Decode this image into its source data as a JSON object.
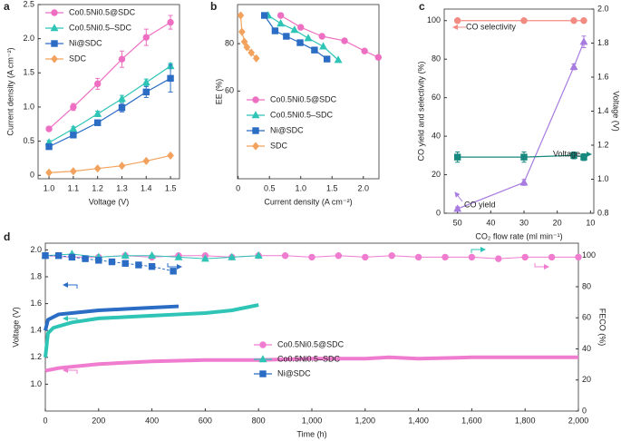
{
  "chart_data": [
    {
      "type": "line",
      "label": "a",
      "xlabel": "Voltage (V)",
      "ylabel": "Current density (A cm⁻²)",
      "x": [
        1.0,
        1.1,
        1.2,
        1.3,
        1.4,
        1.5
      ],
      "xlim": [
        0.955,
        1.537
      ],
      "xticks": [
        {
          "value": 1,
          "label": "1.0"
        },
        1.1,
        1.2,
        1.3,
        1.4,
        1.5
      ],
      "ylim": [
        -0.05,
        2.5
      ],
      "yticks": [
        0,
        0.5,
        {
          "value": 1,
          "label": "1.0"
        },
        1.5,
        {
          "value": 2,
          "label": "2.0"
        },
        2.5
      ],
      "legend": "upper left",
      "series": [
        {
          "name": "Co0.5Ni0.5@SDC",
          "color": "#ee6fc2",
          "marker": "circle",
          "values": [
            0.68,
            1.0,
            1.34,
            1.7,
            2.02,
            2.24
          ],
          "errors": [
            0.03,
            0.05,
            0.08,
            0.12,
            0.12,
            0.1
          ]
        },
        {
          "name": "Co0.5Ni0.5–SDC",
          "color": "#2ec4b6",
          "marker": "triangle",
          "values": [
            0.48,
            0.68,
            0.9,
            1.12,
            1.36,
            1.6
          ],
          "errors": [
            0.03,
            0.03,
            0.04,
            0.05,
            0.05,
            0.04
          ]
        },
        {
          "name": "Ni@SDC",
          "color": "#2b6cc4",
          "marker": "square",
          "values": [
            0.42,
            0.59,
            0.77,
            0.99,
            1.22,
            1.42
          ],
          "errors": [
            0.02,
            0.03,
            0.04,
            0.06,
            0.08,
            0.2
          ]
        },
        {
          "name": "SDC",
          "color": "#f2a25c",
          "marker": "diamond",
          "values": [
            0.04,
            0.06,
            0.1,
            0.14,
            0.21,
            0.29
          ]
        }
      ]
    },
    {
      "type": "line",
      "label": "b",
      "xlabel": "Current density (A cm⁻²)",
      "ylabel": "EE (%)",
      "xlim": [
        -0.01,
        2.25
      ],
      "xticks": [
        0,
        0.5,
        {
          "value": 1,
          "label": "1.0"
        },
        1.5,
        {
          "value": 2,
          "label": "2.0"
        }
      ],
      "ylim": [
        23,
        96.5
      ],
      "yticks": [
        60,
        80
      ],
      "legend": "lower right",
      "series": [
        {
          "name": "Co0.5Ni0.5@SDC",
          "color": "#ee6fc2",
          "marker": "circle",
          "x": [
            0.68,
            1.0,
            1.34,
            1.7,
            2.02,
            2.24
          ],
          "values": [
            91.9,
            86.9,
            83.1,
            81.2,
            76.9,
            74.2
          ]
        },
        {
          "name": "Co0.5Ni0.5–SDC",
          "color": "#2ec4b6",
          "marker": "triangle",
          "x": [
            0.48,
            0.68,
            0.9,
            1.12,
            1.36,
            1.6
          ],
          "values": [
            91.9,
            88.5,
            85.8,
            82.3,
            78.8,
            73.1
          ]
        },
        {
          "name": "Ni@SDC",
          "color": "#2b6cc4",
          "marker": "square",
          "x": [
            0.42,
            0.59,
            0.77,
            0.99,
            1.22,
            1.42
          ],
          "values": [
            91.9,
            85.4,
            83.1,
            80.4,
            77.3,
            73.5
          ]
        },
        {
          "name": "SDC",
          "color": "#f2a25c",
          "marker": "diamond",
          "x": [
            0.04,
            0.06,
            0.1,
            0.14,
            0.21,
            0.29
          ],
          "values": [
            91.9,
            85,
            80.8,
            78.5,
            76.2,
            73.8
          ]
        }
      ]
    },
    {
      "type": "line",
      "label": "c",
      "xlabel": "CO₂ flow rate (ml min⁻¹)",
      "ylabel": "CO yield and selectivity (%)",
      "y2label": "Voltage (V)",
      "x": [
        50,
        30,
        15,
        12
      ],
      "xlim": [
        54,
        9
      ],
      "xticks": [
        50,
        40,
        30,
        20,
        10
      ],
      "ylim": [
        0,
        106
      ],
      "yticks": [
        0,
        20,
        40,
        60,
        80,
        100
      ],
      "y2lim": [
        0.8,
        2.0
      ],
      "y2ticks": [
        0.8,
        {
          "value": 1,
          "label": "1.0"
        },
        1.2,
        1.4,
        1.6,
        1.8,
        {
          "value": 2,
          "label": "2.0"
        }
      ],
      "legend": "annotations",
      "series": [
        {
          "name": "CO selectivity",
          "color": "#f28b82",
          "marker": "circle",
          "values": [
            100,
            100,
            100,
            100
          ]
        },
        {
          "name": "CO yield",
          "color": "#a77be0",
          "marker": "triangle",
          "values": [
            2.3,
            16,
            76,
            89
          ],
          "errors": [
            1,
            1.5,
            1.5,
            3
          ]
        },
        {
          "name": "Voltage",
          "color": "#17897f",
          "marker": "square",
          "axis": "y2",
          "values": [
            1.13,
            1.13,
            1.14,
            1.13
          ],
          "errors": [
            0.03,
            0.03,
            0.02,
            0.02
          ]
        }
      ]
    },
    {
      "type": "line",
      "label": "d",
      "xlabel": "Time (h)",
      "ylabel": "Voltage (V)",
      "y2label": "FECO (%)",
      "xlim": [
        0,
        2000
      ],
      "xticks": [
        0,
        200,
        400,
        600,
        800,
        {
          "value": 1000,
          "label": "1,000"
        },
        {
          "value": 1200,
          "label": "1,200"
        },
        {
          "value": 1400,
          "label": "1,400"
        },
        {
          "value": 1600,
          "label": "1,600"
        },
        {
          "value": 1800,
          "label": "1,800"
        },
        {
          "value": 2000,
          "label": "2,000"
        }
      ],
      "ylim": [
        0.8,
        2.05
      ],
      "yticks": [
        {
          "value": 1,
          "label": "1.0"
        },
        1.2,
        1.4,
        1.6,
        1.8,
        {
          "value": 2,
          "label": "2.0"
        }
      ],
      "y2lim": [
        0,
        108
      ],
      "y2ticks": [
        0,
        20,
        40,
        60,
        80,
        100
      ],
      "legend": "lower center",
      "series": [
        {
          "name": "Co0.5Ni0.5@SDC",
          "color": "#f07ccf",
          "marker": "circle",
          "x": [
            0,
            50,
            100,
            200,
            400,
            600,
            800,
            1000,
            1200,
            1290,
            1400,
            1600,
            1800,
            2000
          ],
          "values": [
            1.1,
            1.12,
            1.13,
            1.15,
            1.17,
            1.18,
            1.18,
            1.19,
            1.19,
            1.2,
            1.19,
            1.2,
            1.2,
            1.2
          ],
          "fe_x": [
            0,
            100,
            200,
            300,
            400,
            500,
            600,
            700,
            800,
            900,
            1000,
            1100,
            1200,
            1300,
            1400,
            1500,
            1600,
            1700,
            1800,
            1900,
            2000
          ],
          "fe_values": [
            100,
            99,
            99,
            100,
            99,
            100,
            100,
            99,
            100,
            100,
            99,
            100,
            99,
            100,
            99,
            99,
            99,
            98,
            99,
            99,
            99
          ]
        },
        {
          "name": "Co0.5Ni0.5–SDC",
          "color": "#2ec4b6",
          "marker": "triangle",
          "x": [
            0,
            10,
            30,
            100,
            200,
            300,
            400,
            500,
            600,
            700,
            800
          ],
          "values": [
            1.2,
            1.38,
            1.42,
            1.46,
            1.49,
            1.5,
            1.51,
            1.52,
            1.53,
            1.55,
            1.59
          ],
          "fe_x": [
            0,
            100,
            200,
            300,
            400,
            500,
            600,
            700,
            800
          ],
          "fe_values": [
            100,
            101,
            99,
            100,
            100,
            99,
            98,
            99,
            100
          ]
        },
        {
          "name": "Ni@SDC",
          "color": "#2b6cc4",
          "marker": "square",
          "x": [
            0,
            10,
            50,
            100,
            200,
            300,
            400,
            500
          ],
          "values": [
            1.4,
            1.48,
            1.52,
            1.53,
            1.55,
            1.56,
            1.57,
            1.58
          ],
          "fe_x": [
            0,
            50,
            100,
            150,
            200,
            250,
            300,
            350,
            400,
            480
          ],
          "fe_values": [
            100,
            100,
            99,
            98,
            97,
            96,
            95,
            94,
            93,
            90
          ]
        }
      ]
    }
  ]
}
